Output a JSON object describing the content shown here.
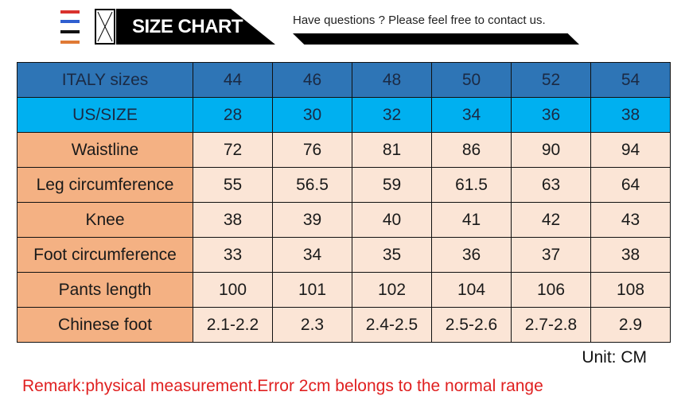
{
  "header": {
    "title": "SIZE CHART",
    "question": "Have questions ? Please feel free to contact us.",
    "stripe_colors": [
      "#d9322e",
      "#2f5fd0",
      "#111111",
      "#e07a35"
    ]
  },
  "table": {
    "rows": [
      {
        "label": "ITALY sizes",
        "values": [
          "44",
          "46",
          "48",
          "50",
          "52",
          "54"
        ],
        "kind": "it"
      },
      {
        "label": "US/SIZE",
        "values": [
          "28",
          "30",
          "32",
          "34",
          "36",
          "38"
        ],
        "kind": "us"
      },
      {
        "label": "Waistline",
        "values": [
          "72",
          "76",
          "81",
          "86",
          "90",
          "94"
        ]
      },
      {
        "label": "Leg circumference",
        "values": [
          "55",
          "56.5",
          "59",
          "61.5",
          "63",
          "64"
        ]
      },
      {
        "label": "Knee",
        "values": [
          "38",
          "39",
          "40",
          "41",
          "42",
          "43"
        ]
      },
      {
        "label": "Foot circumference",
        "values": [
          "33",
          "34",
          "35",
          "36",
          "37",
          "38"
        ]
      },
      {
        "label": "Pants length",
        "values": [
          "100",
          "101",
          "102",
          "104",
          "106",
          "108"
        ]
      },
      {
        "label": "Chinese foot",
        "values": [
          "2.1-2.2",
          "2.3",
          "2.4-2.5",
          "2.5-2.6",
          "2.7-2.8",
          "2.9"
        ]
      }
    ]
  },
  "unit": "Unit: CM",
  "remark": "Remark:physical measurement.Error 2cm belongs to the normal range"
}
